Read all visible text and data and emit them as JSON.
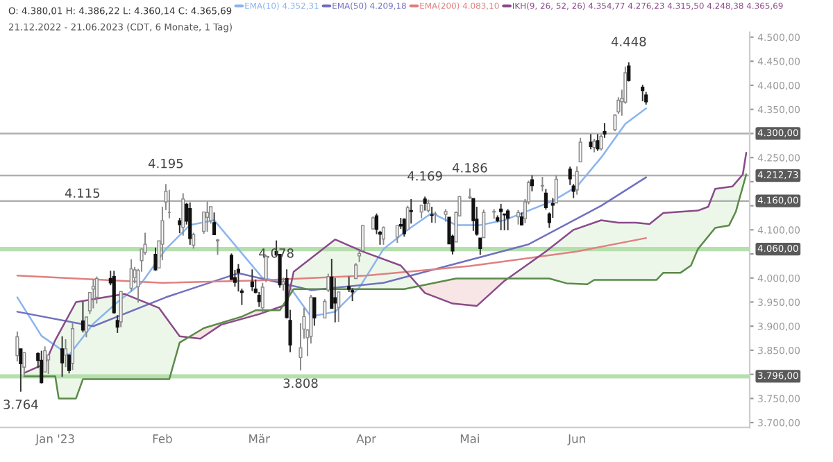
{
  "chart_data": {
    "type": "candlestick",
    "title": "O: 4.380,01 H: 4.386,22 L: 4.360,14 C: 4.365,69",
    "subtitle": "21.12.2022 - 21.06.2023 (CDT, 6 Monate, 1 Tag)",
    "x": [
      "2022-12-21",
      "2022-12-22",
      "2022-12-23",
      "2022-12-27",
      "2022-12-28",
      "2022-12-29",
      "2022-12-30",
      "2023-01-03",
      "2023-01-04",
      "2023-01-05",
      "2023-01-06",
      "2023-01-09",
      "2023-01-10",
      "2023-01-11",
      "2023-01-12",
      "2023-01-13",
      "2023-01-17",
      "2023-01-18",
      "2023-01-19",
      "2023-01-20",
      "2023-01-23",
      "2023-01-24",
      "2023-01-25",
      "2023-01-26",
      "2023-01-27",
      "2023-01-30",
      "2023-01-31",
      "2023-02-01",
      "2023-02-02",
      "2023-02-03",
      "2023-02-06",
      "2023-02-07",
      "2023-02-08",
      "2023-02-09",
      "2023-02-10",
      "2023-02-13",
      "2023-02-14",
      "2023-02-15",
      "2023-02-16",
      "2023-02-17",
      "2023-02-21",
      "2023-02-22",
      "2023-02-23",
      "2023-02-24",
      "2023-02-27",
      "2023-02-28",
      "2023-03-01",
      "2023-03-02",
      "2023-03-03",
      "2023-03-06",
      "2023-03-07",
      "2023-03-08",
      "2023-03-09",
      "2023-03-10",
      "2023-03-13",
      "2023-03-14",
      "2023-03-15",
      "2023-03-16",
      "2023-03-17",
      "2023-03-20",
      "2023-03-21",
      "2023-03-22",
      "2023-03-23",
      "2023-03-24",
      "2023-03-27",
      "2023-03-28",
      "2023-03-29",
      "2023-03-30",
      "2023-03-31",
      "2023-04-03",
      "2023-04-04",
      "2023-04-05",
      "2023-04-06",
      "2023-04-10",
      "2023-04-11",
      "2023-04-12",
      "2023-04-13",
      "2023-04-14",
      "2023-04-17",
      "2023-04-18",
      "2023-04-19",
      "2023-04-20",
      "2023-04-21",
      "2023-04-24",
      "2023-04-25",
      "2023-04-26",
      "2023-04-27",
      "2023-04-28",
      "2023-05-01",
      "2023-05-02",
      "2023-05-03",
      "2023-05-04",
      "2023-05-05",
      "2023-05-08",
      "2023-05-09",
      "2023-05-10",
      "2023-05-11",
      "2023-05-12",
      "2023-05-15",
      "2023-05-16",
      "2023-05-17",
      "2023-05-18",
      "2023-05-19",
      "2023-05-22",
      "2023-05-23",
      "2023-05-24",
      "2023-05-25",
      "2023-05-26",
      "2023-05-30",
      "2023-05-31",
      "2023-06-01",
      "2023-06-02",
      "2023-06-05",
      "2023-06-06",
      "2023-06-07",
      "2023-06-08",
      "2023-06-09",
      "2023-06-12",
      "2023-06-13",
      "2023-06-14",
      "2023-06-15",
      "2023-06-16",
      "2023-06-20",
      "2023-06-21"
    ],
    "ohlc": [
      [
        3839,
        3889,
        3827,
        3878
      ],
      [
        3853,
        3853,
        3764,
        3822
      ],
      [
        3815,
        3846,
        3798,
        3845
      ],
      [
        3843,
        3846,
        3813,
        3829
      ],
      [
        3829,
        3849,
        3781,
        3783
      ],
      [
        3805,
        3858,
        3805,
        3849
      ],
      [
        3830,
        3840,
        3801,
        3840
      ],
      [
        3853,
        3879,
        3795,
        3824
      ],
      [
        3840,
        3873,
        3815,
        3853
      ],
      [
        3840,
        3840,
        3802,
        3808
      ],
      [
        3823,
        3906,
        3809,
        3895
      ],
      [
        3911,
        3951,
        3887,
        3892
      ],
      [
        3888,
        3919,
        3877,
        3919
      ],
      [
        3932,
        3970,
        3925,
        3970
      ],
      [
        3977,
        3997,
        3937,
        3983
      ],
      [
        3960,
        4003,
        3947,
        3999
      ],
      [
        3999,
        4015,
        3985,
        3990
      ],
      [
        4003,
        4015,
        3926,
        3928
      ],
      [
        3912,
        3923,
        3886,
        3898
      ],
      [
        3909,
        3972,
        3898,
        3972
      ],
      [
        3979,
        4039,
        3972,
        4019
      ],
      [
        4001,
        4023,
        3989,
        4017
      ],
      [
        3982,
        4019,
        3949,
        4016
      ],
      [
        4036,
        4061,
        4013,
        4060
      ],
      [
        4053,
        4094,
        4048,
        4070
      ],
      [
        4049,
        4063,
        4015,
        4017
      ],
      [
        4021,
        4077,
        4021,
        4077
      ],
      [
        4070,
        4148,
        4037,
        4119
      ],
      [
        4158,
        4195,
        4141,
        4180
      ],
      [
        4136,
        4183,
        4124,
        4136
      ],
      [
        4119,
        4125,
        4093,
        4111
      ],
      [
        4105,
        4176,
        4088,
        4164
      ],
      [
        4153,
        4156,
        4111,
        4118
      ],
      [
        4144,
        4157,
        4069,
        4082
      ],
      [
        4068,
        4094,
        4061,
        4090
      ],
      [
        4097,
        4138,
        4092,
        4137
      ],
      [
        4126,
        4159,
        4096,
        4136
      ],
      [
        4119,
        4148,
        4113,
        4148
      ],
      [
        4115,
        4136,
        4090,
        4090
      ],
      [
        4077,
        4081,
        4048,
        4079
      ],
      [
        4047,
        4051,
        3996,
        3997
      ],
      [
        4001,
        4017,
        3982,
        3991
      ],
      [
        4018,
        4029,
        3972,
        4012
      ],
      [
        3973,
        3978,
        3944,
        3970
      ],
      [
        3992,
        4018,
        3973,
        3982
      ],
      [
        3977,
        3997,
        3968,
        3970
      ],
      [
        3964,
        3971,
        3940,
        3951
      ],
      [
        3938,
        3990,
        3928,
        3981
      ],
      [
        3998,
        4048,
        3991,
        4045
      ],
      [
        4055,
        4078,
        4044,
        4048
      ],
      [
        4049,
        4050,
        3980,
        3986
      ],
      [
        3987,
        4001,
        3974,
        3992
      ],
      [
        3999,
        4018,
        3916,
        3918
      ],
      [
        3912,
        3934,
        3846,
        3861
      ],
      [
        3835,
        3906,
        3808,
        3855
      ],
      [
        3894,
        3938,
        3874,
        3920
      ],
      [
        3876,
        3894,
        3838,
        3892
      ],
      [
        3879,
        3965,
        3864,
        3960
      ],
      [
        3959,
        3959,
        3901,
        3917
      ],
      [
        3917,
        3956,
        3917,
        3951
      ],
      [
        3975,
        4009,
        3971,
        4003
      ],
      [
        4002,
        4040,
        3937,
        3937
      ],
      [
        3959,
        4000,
        3908,
        3948
      ],
      [
        3939,
        3972,
        3909,
        3971
      ],
      [
        3982,
        4003,
        3971,
        3977
      ],
      [
        3974,
        3979,
        3952,
        3971
      ],
      [
        3999,
        4031,
        3999,
        4027
      ],
      [
        4046,
        4057,
        4033,
        4051
      ],
      [
        4057,
        4110,
        4056,
        4109
      ],
      [
        4102,
        4128,
        4101,
        4125
      ],
      [
        4129,
        4134,
        4091,
        4101
      ],
      [
        4095,
        4098,
        4069,
        4091
      ],
      [
        4081,
        4107,
        4069,
        4105
      ],
      [
        4085,
        4109,
        4073,
        4109
      ],
      [
        4111,
        4125,
        4102,
        4108
      ],
      [
        4122,
        4124,
        4086,
        4092
      ],
      [
        4100,
        4150,
        4100,
        4146
      ],
      [
        4140,
        4164,
        4113,
        4138
      ],
      [
        4137,
        4152,
        4124,
        4151
      ],
      [
        4164,
        4169,
        4140,
        4155
      ],
      [
        4140,
        4163,
        4136,
        4155
      ],
      [
        4131,
        4148,
        4115,
        4130
      ],
      [
        4132,
        4138,
        4114,
        4133
      ],
      [
        4132,
        4143,
        4117,
        4138
      ],
      [
        4126,
        4126,
        4071,
        4071
      ],
      [
        4087,
        4090,
        4049,
        4056
      ],
      [
        4075,
        4138,
        4075,
        4136
      ],
      [
        4129,
        4170,
        4128,
        4169
      ],
      [
        4167,
        4186,
        4164,
        4168
      ],
      [
        4165,
        4165,
        4098,
        4119
      ],
      [
        4122,
        4148,
        4088,
        4091
      ],
      [
        4083,
        4083,
        4048,
        4061
      ],
      [
        4084,
        4142,
        4084,
        4136
      ],
      [
        4137,
        4143,
        4123,
        4138
      ],
      [
        4125,
        4130,
        4116,
        4119
      ],
      [
        4143,
        4154,
        4099,
        4138
      ],
      [
        4133,
        4133,
        4099,
        4131
      ],
      [
        4139,
        4143,
        4099,
        4124
      ],
      [
        4127,
        4141,
        4111,
        4136
      ],
      [
        4127,
        4136,
        4109,
        4110
      ],
      [
        4123,
        4164,
        4114,
        4158
      ],
      [
        4158,
        4202,
        4153,
        4198
      ],
      [
        4204,
        4213,
        4180,
        4192
      ],
      [
        4191,
        4210,
        4180,
        4192
      ],
      [
        4176,
        4185,
        4142,
        4146
      ],
      [
        4133,
        4136,
        4104,
        4115
      ],
      [
        4155,
        4166,
        4125,
        4151
      ],
      [
        4156,
        4213,
        4155,
        4205
      ],
      [
        4226,
        4231,
        4193,
        4206
      ],
      [
        4191,
        4195,
        4166,
        4180
      ],
      [
        4183,
        4232,
        4173,
        4221
      ],
      [
        4241,
        4291,
        4241,
        4282
      ],
      [
        4282,
        4299,
        4267,
        4273
      ],
      [
        4271,
        4289,
        4261,
        4284
      ],
      [
        4285,
        4299,
        4264,
        4268
      ],
      [
        4268,
        4298,
        4265,
        4294
      ],
      [
        4304,
        4322,
        4291,
        4299
      ],
      [
        4308,
        4340,
        4305,
        4338
      ],
      [
        4345,
        4375,
        4341,
        4369
      ],
      [
        4366,
        4391,
        4337,
        4373
      ],
      [
        4365,
        4439,
        4362,
        4426
      ],
      [
        4440,
        4448,
        4408,
        4410
      ],
      [
        4396,
        4401,
        4367,
        4389
      ],
      [
        4380.01,
        4386.22,
        4360.14,
        4365.69
      ]
    ],
    "series": [
      {
        "type": "line",
        "name": "EMA(10) 4.352,31",
        "color": "#8ab4f0",
        "x": [
          "2022-12-21",
          "2022-12-28",
          "2023-01-05",
          "2023-01-12",
          "2023-01-19",
          "2023-01-26",
          "2023-02-02",
          "2023-02-09",
          "2023-02-16",
          "2023-02-23",
          "2023-03-02",
          "2023-03-09",
          "2023-03-16",
          "2023-03-23",
          "2023-03-30",
          "2023-04-06",
          "2023-04-13",
          "2023-04-20",
          "2023-04-27",
          "2023-05-04",
          "2023-05-11",
          "2023-05-18",
          "2023-05-25",
          "2023-06-01",
          "2023-06-08",
          "2023-06-15",
          "2023-06-21"
        ],
        "values": [
          3960,
          3880,
          3840,
          3905,
          3950,
          3990,
          4060,
          4110,
          4120,
          4060,
          4000,
          3990,
          3920,
          3930,
          3980,
          4060,
          4100,
          4135,
          4110,
          4110,
          4120,
          4140,
          4160,
          4190,
          4250,
          4320,
          4352
        ]
      },
      {
        "type": "line",
        "name": "EMA(50) 4.209,18",
        "color": "#7070c0",
        "x": [
          "2022-12-21",
          "2023-01-12",
          "2023-02-02",
          "2023-02-23",
          "2023-03-16",
          "2023-04-06",
          "2023-04-27",
          "2023-05-18",
          "2023-06-08",
          "2023-06-21"
        ],
        "values": [
          3930,
          3900,
          3960,
          4010,
          3975,
          3990,
          4030,
          4070,
          4150,
          4209
        ]
      },
      {
        "type": "line",
        "name": "EMA(200) 4.083,10",
        "color": "#e08080",
        "x": [
          "2022-12-21",
          "2023-02-01",
          "2023-03-01",
          "2023-04-01",
          "2023-05-01",
          "2023-06-01",
          "2023-06-21"
        ],
        "values": [
          4005,
          3990,
          3995,
          4005,
          4025,
          4055,
          4083
        ]
      },
      {
        "type": "line",
        "name": "IKH(9, 26, 52, 26) 4.354,77 4.276,23 4.315,50 4.248,38 4.365,69",
        "color": "#8a4a8a",
        "x": [
          "2022-12-23",
          "2022-12-29",
          "2023-01-01",
          "2023-01-07",
          "2023-01-21",
          "2023-01-31",
          "2023-02-06",
          "2023-02-12",
          "2023-02-18",
          "2023-03-01",
          "2023-03-09",
          "2023-03-11",
          "2023-03-23",
          "2023-03-31",
          "2023-04-11",
          "2023-04-18",
          "2023-04-26",
          "2023-05-03",
          "2023-05-11",
          "2023-05-23",
          "2023-05-31",
          "2023-06-08",
          "2023-06-13",
          "2023-06-18",
          "2023-06-22",
          "2023-06-26",
          "2023-07-06",
          "2023-07-09",
          "2023-07-11",
          "2023-07-16",
          "2023-07-19",
          "2023-07-20"
        ],
        "values": [
          3803,
          3822,
          3871,
          3950,
          3967,
          3938,
          3879,
          3874,
          3903,
          3925,
          3945,
          4013,
          4080,
          4055,
          4026,
          3969,
          3947,
          3942,
          3994,
          4055,
          4100,
          4120,
          4115,
          4115,
          4112,
          4135,
          4140,
          4148,
          4185,
          4190,
          4215,
          4260
        ]
      },
      {
        "type": "line",
        "color": "#5a8a4a",
        "x": [
          "2022-12-23",
          "2023-01-01",
          "2023-01-02",
          "2023-01-07",
          "2023-01-09",
          "2023-02-03",
          "2023-02-06",
          "2023-02-13",
          "2023-02-24",
          "2023-02-28",
          "2023-03-07",
          "2023-03-11",
          "2023-04-12",
          "2023-04-25",
          "2023-04-27",
          "2023-05-24",
          "2023-05-29",
          "2023-06-04",
          "2023-06-06",
          "2023-06-24",
          "2023-06-26",
          "2023-07-01",
          "2023-07-04",
          "2023-07-06",
          "2023-07-11",
          "2023-07-15",
          "2023-07-17",
          "2023-07-20"
        ],
        "values": [
          3796,
          3796,
          3750,
          3750,
          3790,
          3790,
          3866,
          3896,
          3920,
          3933,
          3933,
          3977,
          3977,
          3996,
          3999,
          3999,
          3989,
          3987,
          3996,
          3996,
          4011,
          4011,
          4026,
          4060,
          4104,
          4109,
          4138,
          4215
        ]
      }
    ],
    "ref_lines": [
      {
        "axis": "y",
        "value": 4300,
        "label": "4.300,00",
        "color": "#b0b0b0"
      },
      {
        "axis": "y",
        "value": 4212.73,
        "label": "4.212,73",
        "color": "#b0b0b0"
      },
      {
        "axis": "y",
        "value": 4160,
        "label": "4.160,00",
        "color": "#b0b0b0"
      },
      {
        "axis": "y",
        "value": 4060,
        "label": "4.060,00",
        "color": "#b5e0ad"
      },
      {
        "axis": "y",
        "value": 3796,
        "label": "3.796,00",
        "color": "#b5e0ad"
      }
    ],
    "annotations": [
      {
        "text": "4.448",
        "x": "2023-06-16",
        "y": 4448
      },
      {
        "text": "4.195",
        "x": "2023-02-02",
        "y": 4195
      },
      {
        "text": "4.169",
        "x": "2023-04-18",
        "y": 4169
      },
      {
        "text": "4.186",
        "x": "2023-05-01",
        "y": 4186
      },
      "4.115",
      {
        "text": "4.078",
        "x": "2023-03-06",
        "y": 4078
      },
      {
        "text": "3.764",
        "x": "2022-12-22",
        "y": 3764
      },
      {
        "text": "3.808",
        "x": "2023-03-13",
        "y": 3808
      }
    ],
    "xlim": [
      "2022-12-16",
      "2023-07-21"
    ],
    "xticks": [
      {
        "value": "2023-01-01",
        "label": "Jan '23"
      },
      {
        "value": "2023-02-01",
        "label": "Feb"
      },
      {
        "value": "2023-03-01",
        "label": "Mär"
      },
      {
        "value": "2023-04-01",
        "label": "Apr"
      },
      {
        "value": "2023-05-01",
        "label": "Mai"
      },
      {
        "value": "2023-06-01",
        "label": "Jun"
      }
    ],
    "ylim": [
      3690,
      4510
    ],
    "yticks": [
      {
        "value": 3700,
        "label": "3.700,00"
      },
      {
        "value": 3750,
        "label": "3.750,00"
      },
      {
        "value": 3800,
        "label": null
      },
      {
        "value": 3850,
        "label": "3.850,00"
      },
      {
        "value": 3900,
        "label": "3.900,00"
      },
      {
        "value": 3950,
        "label": "3.950,00"
      },
      {
        "value": 4000,
        "label": "4.000,00"
      },
      {
        "value": 4050,
        "label": null
      },
      {
        "value": 4100,
        "label": "4.100,00"
      },
      {
        "value": 4150,
        "label": null
      },
      {
        "value": 4200,
        "label": null
      },
      {
        "value": 4250,
        "label": "4.250,00"
      },
      {
        "value": 4300,
        "label": null
      },
      {
        "value": 4350,
        "label": "4.350,00"
      },
      {
        "value": 4400,
        "label": "4.400,00"
      },
      {
        "value": 4450,
        "label": "4.450,00"
      },
      {
        "value": 4500,
        "label": "4.500,00"
      }
    ],
    "legend": "top",
    "grid": false
  }
}
